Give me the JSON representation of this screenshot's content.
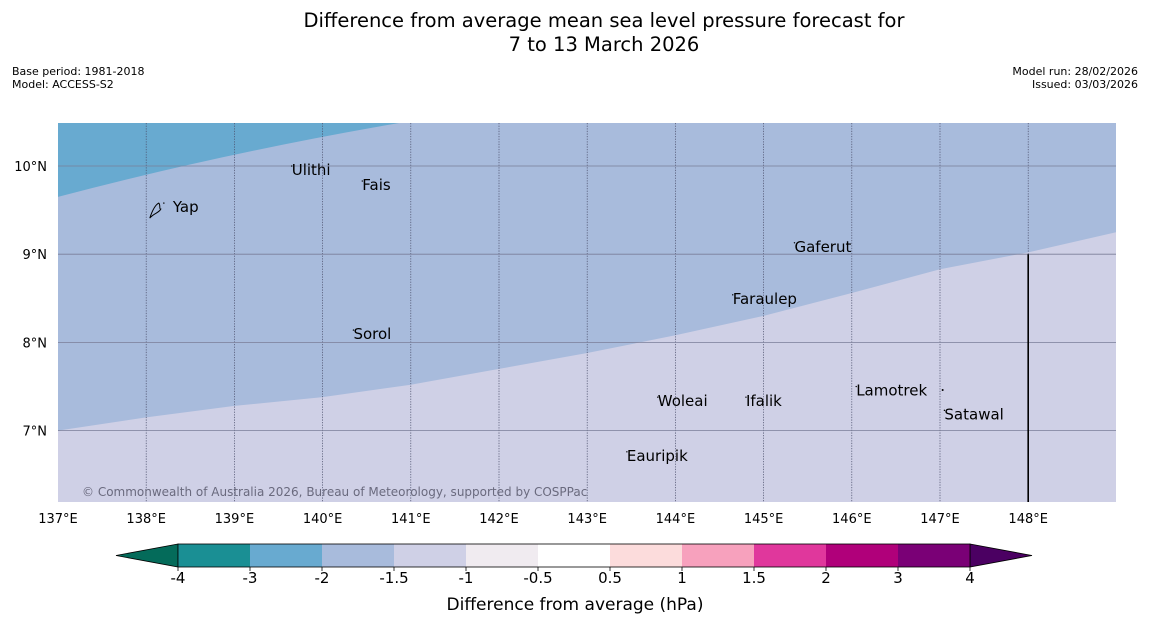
{
  "title": {
    "line1": "Difference from average mean sea level pressure forecast for",
    "line2": "7 to 13 March 2026"
  },
  "meta_left": {
    "base_period": "Base period: 1981-2018",
    "model": "Model: ACCESS-S2"
  },
  "meta_right": {
    "model_run": "Model run: 28/02/2026",
    "issued": "Issued: 03/03/2026"
  },
  "map": {
    "lon_range": [
      137,
      149
    ],
    "lat_range": [
      6.2,
      10.5
    ],
    "lon_ticks": [
      {
        "value": 137,
        "label": "137°E"
      },
      {
        "value": 138,
        "label": "138°E"
      },
      {
        "value": 139,
        "label": "139°E"
      },
      {
        "value": 140,
        "label": "140°E"
      },
      {
        "value": 141,
        "label": "141°E"
      },
      {
        "value": 142,
        "label": "142°E"
      },
      {
        "value": 143,
        "label": "143°E"
      },
      {
        "value": 144,
        "label": "144°E"
      },
      {
        "value": 145,
        "label": "145°E"
      },
      {
        "value": 146,
        "label": "146°E"
      },
      {
        "value": 147,
        "label": "147°E"
      },
      {
        "value": 148,
        "label": "148°E"
      }
    ],
    "lat_ticks": [
      {
        "value": 10,
        "label": "10°N"
      },
      {
        "value": 9,
        "label": "9°N"
      },
      {
        "value": 8,
        "label": "8°N"
      },
      {
        "value": 7,
        "label": "7°N"
      }
    ],
    "places": [
      {
        "name": "Yap",
        "lon": 138.2,
        "lat": 9.5
      },
      {
        "name": "Ulithi",
        "lon": 139.65,
        "lat": 9.92
      },
      {
        "name": "Fais",
        "lon": 140.45,
        "lat": 9.75
      },
      {
        "name": "Gaferut",
        "lon": 145.35,
        "lat": 9.05
      },
      {
        "name": "Faraulep",
        "lon": 144.65,
        "lat": 8.46
      },
      {
        "name": "Sorol",
        "lon": 140.35,
        "lat": 8.06
      },
      {
        "name": "Lamotrek",
        "lon": 146.05,
        "lat": 7.42
      },
      {
        "name": "Woleai",
        "lon": 143.8,
        "lat": 7.3
      },
      {
        "name": "Ifalik",
        "lon": 144.8,
        "lat": 7.3
      },
      {
        "name": "Satawal",
        "lon": 147.05,
        "lat": 7.15
      },
      {
        "name": "Eauripik",
        "lon": 143.45,
        "lat": 6.68
      }
    ],
    "regions": {
      "minus3_to_minus2": {
        "color": "#68aad0",
        "boundary_west": {
          "lon": 137,
          "lat": 9.65
        },
        "boundary_east": {
          "lon": 141.0,
          "lat": 10.5
        }
      },
      "minus2_to_minus1_5": {
        "color": "#a8bbdc",
        "boundary": [
          {
            "lon": 137,
            "lat": 7.0
          },
          {
            "lon": 138,
            "lat": 7.15
          },
          {
            "lon": 139,
            "lat": 7.28
          },
          {
            "lon": 140,
            "lat": 7.38
          },
          {
            "lon": 141,
            "lat": 7.52
          },
          {
            "lon": 142,
            "lat": 7.7
          },
          {
            "lon": 143,
            "lat": 7.88
          },
          {
            "lon": 144,
            "lat": 8.08
          },
          {
            "lon": 145,
            "lat": 8.3
          },
          {
            "lon": 146,
            "lat": 8.56
          },
          {
            "lon": 147,
            "lat": 8.83
          },
          {
            "lon": 148,
            "lat": 9.02
          },
          {
            "lon": 149,
            "lat": 9.25
          }
        ]
      },
      "minus1_5_to_minus1": {
        "color": "#cfd0e6"
      }
    },
    "boundary_line": {
      "lon": 148.0,
      "lat_from": 9.0,
      "lat_to": 6.2
    },
    "copyright": "© Commonwealth of Australia 2026, Bureau of Meteorology, supported by COSPPac"
  },
  "colorbar": {
    "boundaries": [
      -4,
      -3,
      -2,
      -1.5,
      -1,
      -0.5,
      0.5,
      1,
      1.5,
      2,
      3,
      4
    ],
    "tick_labels": [
      "-4",
      "-3",
      "-2",
      "-1.5",
      "-1",
      "-0.5",
      "0.5",
      "1",
      "1.5",
      "2",
      "3",
      "4"
    ],
    "colors": [
      "#1a8f94",
      "#68aad0",
      "#a8bbdc",
      "#cfd0e6",
      "#f0ebf0",
      "#ffffff",
      "#fcdcdc",
      "#f7a1bd",
      "#e0379c",
      "#b0007a",
      "#7a0076"
    ],
    "extend_low_color": "#046b5a",
    "extend_high_color": "#4b0062",
    "label": "Difference from average (hPa)"
  }
}
